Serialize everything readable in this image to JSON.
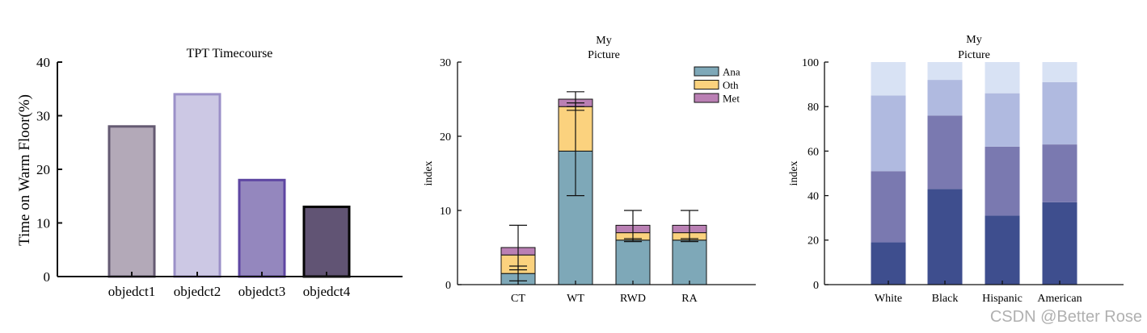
{
  "watermark": "CSDN @Better Rose",
  "chart_data": [
    {
      "type": "bar",
      "title": "TPT Timecourse",
      "xlabel": "",
      "ylabel": "Time on Warm Floor(%)",
      "ylim": [
        0,
        40
      ],
      "yticks": [
        0,
        10,
        20,
        30,
        40
      ],
      "categories": [
        "objedct1",
        "objedct2",
        "objedct3",
        "objedct4"
      ],
      "values": [
        28,
        34,
        18,
        13
      ],
      "fill_colors": [
        "#b3a9b8",
        "#ccc8e4",
        "#9487be",
        "#615474"
      ],
      "edge_colors": [
        "#645a72",
        "#9b90c8",
        "#5e46a2",
        "#050505"
      ]
    },
    {
      "type": "bar",
      "stacked": true,
      "title": [
        "My",
        "Picture"
      ],
      "xlabel": "",
      "ylabel": "index",
      "ylim": [
        0,
        30
      ],
      "yticks": [
        0,
        10,
        20,
        30
      ],
      "categories": [
        "CT",
        "WT",
        "RWD",
        "RA"
      ],
      "series": [
        {
          "name": "Ana",
          "values": [
            1.5,
            18,
            6,
            6
          ],
          "err": [
            1,
            6,
            0.2,
            0.2
          ],
          "color": "#7ea8b8"
        },
        {
          "name": "Oth",
          "values": [
            2.5,
            6,
            1,
            1
          ],
          "err": [
            0,
            0.5,
            0,
            0
          ],
          "color": "#fbd27e"
        },
        {
          "name": "Met",
          "values": [
            1,
            1,
            1,
            1
          ],
          "err": [
            3,
            1,
            2,
            2
          ],
          "color": "#ba80b4"
        }
      ],
      "legend": "top-right"
    },
    {
      "type": "bar",
      "stacked": true,
      "title": [
        "My",
        "Picture"
      ],
      "xlabel": "",
      "ylabel": "index",
      "ylim": [
        0,
        100
      ],
      "yticks": [
        0,
        20,
        40,
        60,
        80,
        100
      ],
      "categories": [
        "White",
        "Black",
        "Hispanic",
        "American"
      ],
      "series": [
        {
          "values": [
            19,
            43,
            31,
            37
          ],
          "color": "#3e4e8e"
        },
        {
          "values": [
            32,
            33,
            31,
            26
          ],
          "color": "#7a79b0"
        },
        {
          "values": [
            34,
            16,
            24,
            28
          ],
          "color": "#b0bae0"
        },
        {
          "values": [
            15,
            8,
            14,
            9
          ],
          "color": "#d8e2f4"
        }
      ]
    }
  ]
}
